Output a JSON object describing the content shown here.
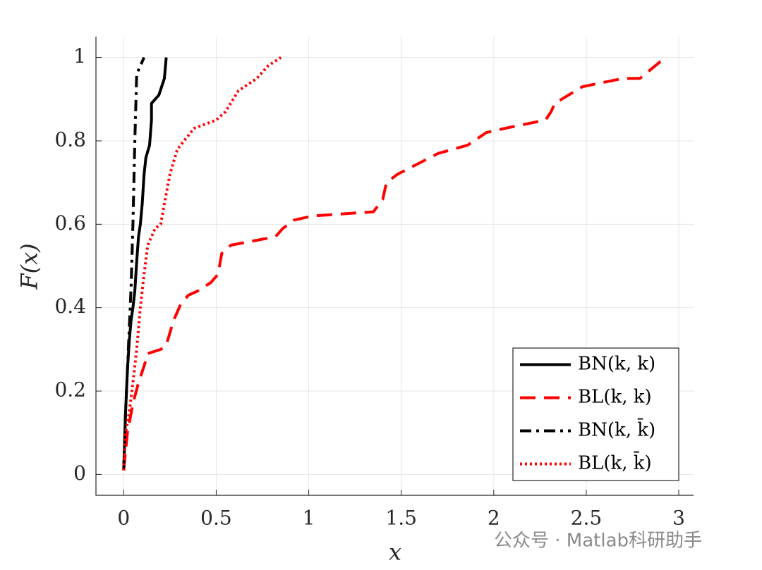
{
  "chart_data": {
    "type": "line",
    "xlabel": "x",
    "ylabel": "F(x)",
    "xlim": [
      -0.15,
      3.08
    ],
    "ylim": [
      -0.05,
      1.05
    ],
    "xticks": [
      0,
      0.5,
      1,
      1.5,
      2,
      2.5,
      3
    ],
    "yticks": [
      0,
      0.2,
      0.4,
      0.6,
      0.8,
      1
    ],
    "grid": true,
    "legend_location": "lower right",
    "series": [
      {
        "name": "BN(k, k)",
        "color": "#000000",
        "linestyle": "solid",
        "x": [
          0.0,
          0.01,
          0.02,
          0.03,
          0.04,
          0.05,
          0.06,
          0.07,
          0.08,
          0.09,
          0.1,
          0.11,
          0.12,
          0.14,
          0.15,
          0.15,
          0.19,
          0.22,
          0.23
        ],
        "values": [
          0.01,
          0.15,
          0.25,
          0.32,
          0.37,
          0.4,
          0.44,
          0.51,
          0.57,
          0.6,
          0.65,
          0.72,
          0.76,
          0.79,
          0.85,
          0.89,
          0.91,
          0.95,
          1.0
        ]
      },
      {
        "name": "BL(k, k)",
        "color": "#ff0000",
        "linestyle": "dashed",
        "x": [
          0.0,
          0.02,
          0.05,
          0.08,
          0.11,
          0.13,
          0.2,
          0.23,
          0.27,
          0.31,
          0.35,
          0.4,
          0.47,
          0.51,
          0.53,
          0.58,
          0.82,
          0.86,
          0.92,
          1.02,
          1.35,
          1.4,
          1.42,
          1.48,
          1.7,
          1.86,
          1.96,
          2.06,
          2.28,
          2.31,
          2.33,
          2.48,
          2.7,
          2.79,
          2.9,
          2.94
        ],
        "values": [
          0.01,
          0.1,
          0.17,
          0.22,
          0.26,
          0.29,
          0.3,
          0.31,
          0.37,
          0.41,
          0.43,
          0.44,
          0.46,
          0.48,
          0.53,
          0.55,
          0.57,
          0.59,
          0.61,
          0.62,
          0.63,
          0.66,
          0.7,
          0.72,
          0.77,
          0.79,
          0.82,
          0.83,
          0.85,
          0.87,
          0.89,
          0.93,
          0.95,
          0.95,
          0.99,
          1.0
        ]
      },
      {
        "name": "BN(k, k̄)",
        "color": "#000000",
        "linestyle": "dashdot",
        "x": [
          0.0,
          0.01,
          0.02,
          0.03,
          0.04,
          0.05,
          0.06,
          0.07,
          0.09,
          0.11
        ],
        "values": [
          0.01,
          0.15,
          0.25,
          0.35,
          0.45,
          0.6,
          0.8,
          0.96,
          0.98,
          1.0
        ]
      },
      {
        "name": "BL(k, k̄)",
        "color": "#ff0000",
        "linestyle": "dotted",
        "x": [
          0.0,
          0.01,
          0.03,
          0.05,
          0.07,
          0.09,
          0.11,
          0.13,
          0.17,
          0.2,
          0.22,
          0.25,
          0.29,
          0.38,
          0.5,
          0.55,
          0.62,
          0.72,
          0.78,
          0.85
        ],
        "values": [
          0.01,
          0.1,
          0.15,
          0.22,
          0.3,
          0.4,
          0.48,
          0.55,
          0.59,
          0.6,
          0.65,
          0.72,
          0.78,
          0.83,
          0.85,
          0.87,
          0.92,
          0.95,
          0.98,
          1.0
        ]
      }
    ]
  },
  "watermark": "公众号 · Matlab科研助手"
}
